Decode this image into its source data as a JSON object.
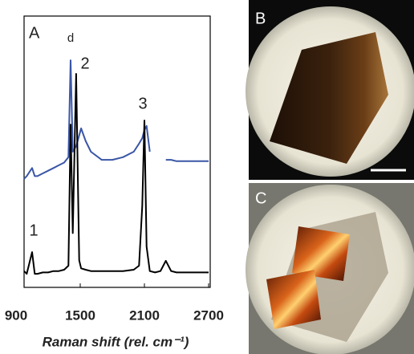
{
  "chart_data": {
    "type": "line",
    "panel_labels": [
      "A",
      "B",
      "C"
    ],
    "annotations": [
      "d",
      "2",
      "3",
      "1"
    ],
    "x_label": "Raman shift (rel. cm⁻¹)",
    "x": [
      975,
      1000,
      1050,
      1075,
      1100,
      1150,
      1200,
      1250,
      1300,
      1350,
      1390,
      1410,
      1430,
      1462,
      1490,
      1508,
      1550,
      1600,
      1700,
      1800,
      1900,
      2000,
      2050,
      2080,
      2100,
      2120,
      2150,
      2200,
      2250,
      2300,
      2350,
      2400,
      2500,
      2600,
      2700
    ],
    "series": [
      {
        "color": "#3a56a6",
        "values": [
          40,
          41,
          44,
          41,
          41,
          42,
          43,
          44,
          45,
          46,
          48,
          83.7,
          50,
          52,
          56,
          58.6,
          54,
          50,
          47,
          47,
          48,
          50,
          53,
          55,
          58,
          59.5,
          50,
          null,
          null,
          47,
          47,
          46.5,
          46.5,
          46.5,
          46.5
        ]
      },
      {
        "color": "#000000",
        "values": [
          6,
          5,
          13,
          5,
          5,
          5.5,
          5.5,
          6,
          6,
          6.5,
          8,
          60,
          20,
          78.7,
          10,
          7,
          6.5,
          6,
          6,
          6,
          6,
          6.5,
          8,
          30,
          61.5,
          15,
          6,
          5.5,
          6,
          9.8,
          6,
          5.5,
          5.5,
          5.5,
          5.5
        ]
      }
    ],
    "xlim": [
      975,
      2715
    ],
    "ylim": [
      0,
      100
    ],
    "xticks": [
      900,
      1500,
      2100,
      2700
    ]
  }
}
